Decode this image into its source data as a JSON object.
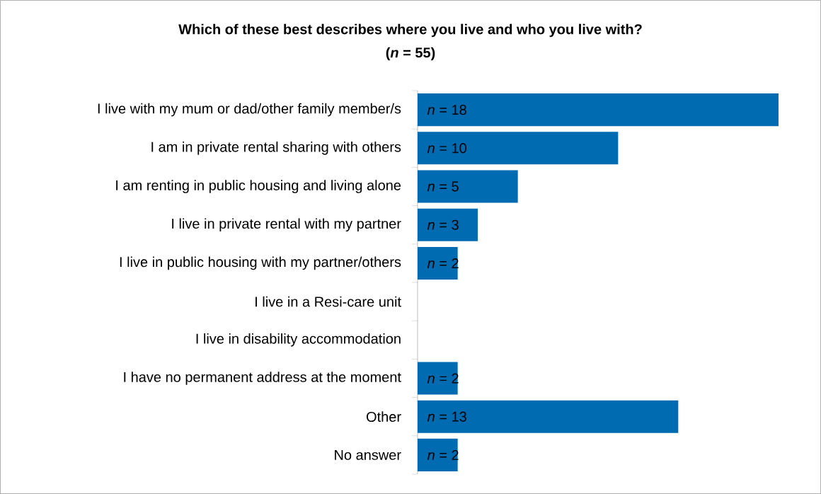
{
  "chart_data": {
    "type": "bar",
    "orientation": "horizontal",
    "title": "Which of these best describes where you live and who you live with?",
    "subtitle": "(*n* = 55)",
    "categories": [
      "I live with my mum or dad/other family member/s",
      "I am in private rental sharing with others",
      "I am renting in public housing and living alone",
      "I live in private rental with my partner",
      "I live in public housing with my partner/others",
      "I live in a Resi-care unit",
      "I live in disability accommodation",
      "I have no permanent address at the moment",
      "Other",
      "No answer"
    ],
    "values": [
      18,
      10,
      5,
      3,
      2,
      0,
      0,
      2,
      13,
      2
    ],
    "value_labels": [
      "*n* = 18",
      "*n* = 10",
      "*n* = 5",
      "*n* = 3",
      "*n* = 2",
      null,
      null,
      "*n* = 2",
      "*n* = 13",
      "*n* = 2"
    ],
    "color": "#006bb0"
  }
}
